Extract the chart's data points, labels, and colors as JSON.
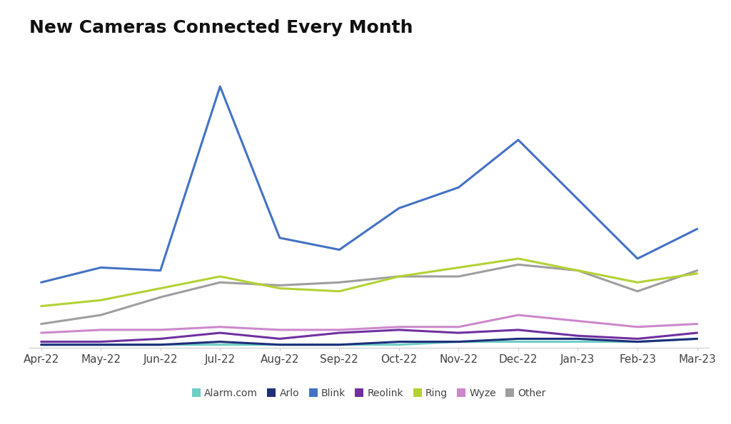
{
  "title": "New Cameras Connected Every Month",
  "months": [
    "Apr-22",
    "May-22",
    "Jun-22",
    "Jul-22",
    "Aug-22",
    "Sep-22",
    "Oct-22",
    "Nov-22",
    "Dec-22",
    "Jan-23",
    "Feb-23",
    "Mar-23"
  ],
  "series": {
    "Blink": [
      22,
      27,
      26,
      88,
      37,
      33,
      47,
      54,
      70,
      50,
      30,
      40
    ],
    "Ring": [
      14,
      16,
      20,
      24,
      20,
      19,
      24,
      27,
      30,
      26,
      22,
      25
    ],
    "Other": [
      8,
      11,
      17,
      22,
      21,
      22,
      24,
      24,
      28,
      26,
      19,
      26
    ],
    "Wyze": [
      5,
      6,
      6,
      7,
      6,
      6,
      7,
      7,
      11,
      9,
      7,
      8
    ],
    "Reolink": [
      2,
      2,
      3,
      5,
      3,
      5,
      6,
      5,
      6,
      4,
      3,
      5
    ],
    "Arlo": [
      1,
      1,
      1,
      2,
      1,
      1,
      2,
      2,
      3,
      3,
      2,
      3
    ],
    "Alarm.com": [
      1,
      1,
      1,
      1,
      1,
      1,
      1,
      2,
      2,
      2,
      2,
      3
    ]
  },
  "line_colors": {
    "Blink": "#4472C4",
    "Ring": "#B2D235",
    "Other": "#9E9E9E",
    "Wyze": "#CC88CC",
    "Reolink": "#7030A0",
    "Arlo": "#1F2F7A",
    "Alarm.com": "#6ECEC4"
  },
  "legend_order": [
    "Alarm.com",
    "Arlo",
    "Blink",
    "Reolink",
    "Ring",
    "Wyze",
    "Other"
  ],
  "legend_colors": {
    "Alarm.com": "#6ECEC4",
    "Arlo": "#1F2F7A",
    "Blink": "#4472C4",
    "Reolink": "#7030A0",
    "Ring": "#B2D235",
    "Wyze": "#CC88CC",
    "Other": "#9E9E9E"
  },
  "background_color": "#FFFFFF",
  "title_fontsize": 18,
  "axis_fontsize": 11,
  "legend_fontsize": 10,
  "linewidth": 2.2,
  "ylim": [
    0,
    100
  ]
}
